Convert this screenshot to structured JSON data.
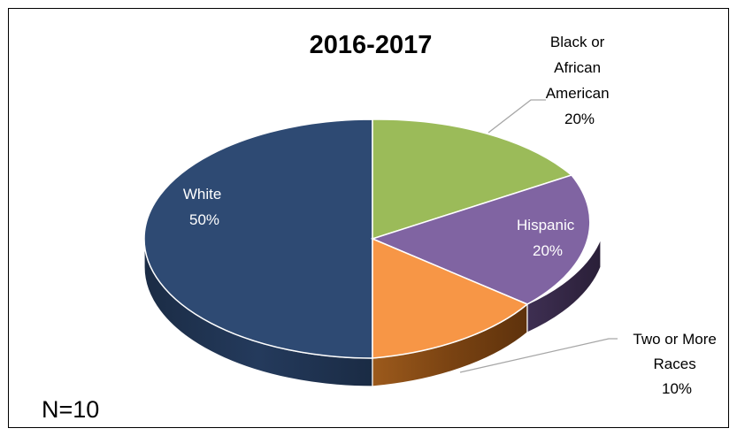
{
  "chart_data": {
    "type": "pie",
    "title": "2016-2017",
    "slices": [
      {
        "key": "black",
        "label_lines": [
          "Black or",
          "African",
          "American"
        ],
        "value": 20,
        "value_label": "20%",
        "color": "#9BBB59"
      },
      {
        "key": "hispanic",
        "label_lines": [
          "Hispanic"
        ],
        "value": 20,
        "value_label": "20%",
        "color": "#8064A2"
      },
      {
        "key": "two",
        "label_lines": [
          "Two or More",
          "Races"
        ],
        "value": 10,
        "value_label": "10%",
        "color": "#F79646"
      },
      {
        "key": "white",
        "label_lines": [
          "White"
        ],
        "value": 50,
        "value_label": "50%",
        "color": "#2E4A73"
      }
    ],
    "annotation": "N=10",
    "style": "3d"
  }
}
